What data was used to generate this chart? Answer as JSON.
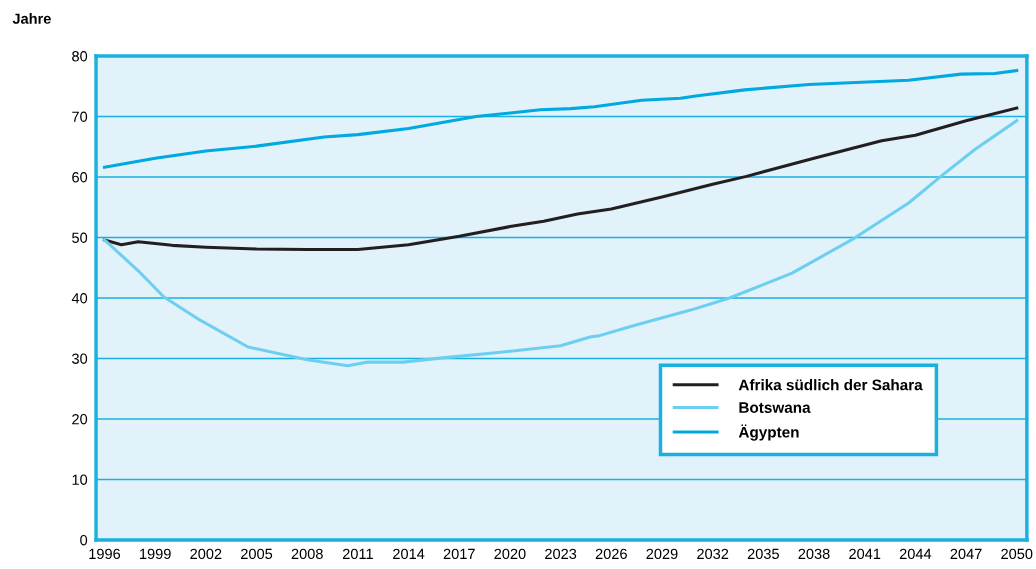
{
  "chart_data": {
    "type": "line",
    "ylabel": "Jahre",
    "series": [
      {
        "name": "Afrika südlich der Sahara",
        "color": "#231f20",
        "x": [
          1996,
          1997,
          1998,
          2000,
          2002,
          2005,
          2008,
          2011,
          2014,
          2017,
          2020,
          2022,
          2024,
          2026,
          2029,
          2032,
          2034,
          2038,
          2042,
          2044,
          2047,
          2050
        ],
        "values": [
          49.6,
          48.8,
          49.3,
          48.7,
          48.4,
          48.1,
          48.0,
          48.0,
          48.8,
          50.2,
          51.8,
          52.7,
          53.9,
          54.7,
          56.7,
          58.8,
          60.1,
          63.1,
          66.0,
          66.9,
          69.3,
          71.4
        ]
      },
      {
        "name": "Botswana",
        "color": "#6dcff0",
        "x": [
          1996,
          1998,
          1999.5,
          2001.5,
          2004.5,
          2008,
          2010.4,
          2011.6,
          2013.7,
          2016,
          2019,
          2023,
          2024.8,
          2025.2,
          2027.4,
          2030.7,
          2033,
          2036.7,
          2040.4,
          2043.6,
          2045.6,
          2047.5,
          2050
        ],
        "values": [
          49.6,
          44.5,
          40.2,
          36.6,
          31.9,
          29.8,
          28.8,
          29.4,
          29.4,
          30.1,
          30.9,
          32.1,
          33.6,
          33.7,
          35.5,
          38.0,
          40.0,
          44.1,
          49.9,
          55.7,
          60.3,
          64.5,
          69.3
        ]
      },
      {
        "name": "Ägypten",
        "color": "#00a9e0",
        "x": [
          1996,
          1999,
          2002,
          2005,
          2009,
          2011,
          2014,
          2018,
          2021.8,
          2023.6,
          2025,
          2027.8,
          2030.1,
          2031,
          2033.9,
          2037.7,
          2043.6,
          2046.7,
          2048.7,
          2050
        ],
        "values": [
          61.6,
          63.1,
          64.3,
          65.1,
          66.6,
          67.0,
          68.0,
          70.0,
          71.1,
          71.3,
          71.6,
          72.7,
          73.0,
          73.4,
          74.4,
          75.3,
          76.0,
          77.0,
          77.1,
          77.6
        ]
      }
    ],
    "xlim": [
      1995.5,
      2050.6
    ],
    "xticks": [
      1996,
      1999,
      2002,
      2005,
      2008,
      2011,
      2014,
      2017,
      2020,
      2023,
      2026,
      2029,
      2032,
      2035,
      2038,
      2041,
      2044,
      2047,
      2050
    ],
    "ylim": [
      0,
      80
    ],
    "yticks": [
      0,
      10,
      20,
      30,
      40,
      50,
      60,
      70,
      80
    ],
    "grid": "y",
    "legend": "bottom right",
    "marker": "none",
    "line_style": "solid"
  }
}
